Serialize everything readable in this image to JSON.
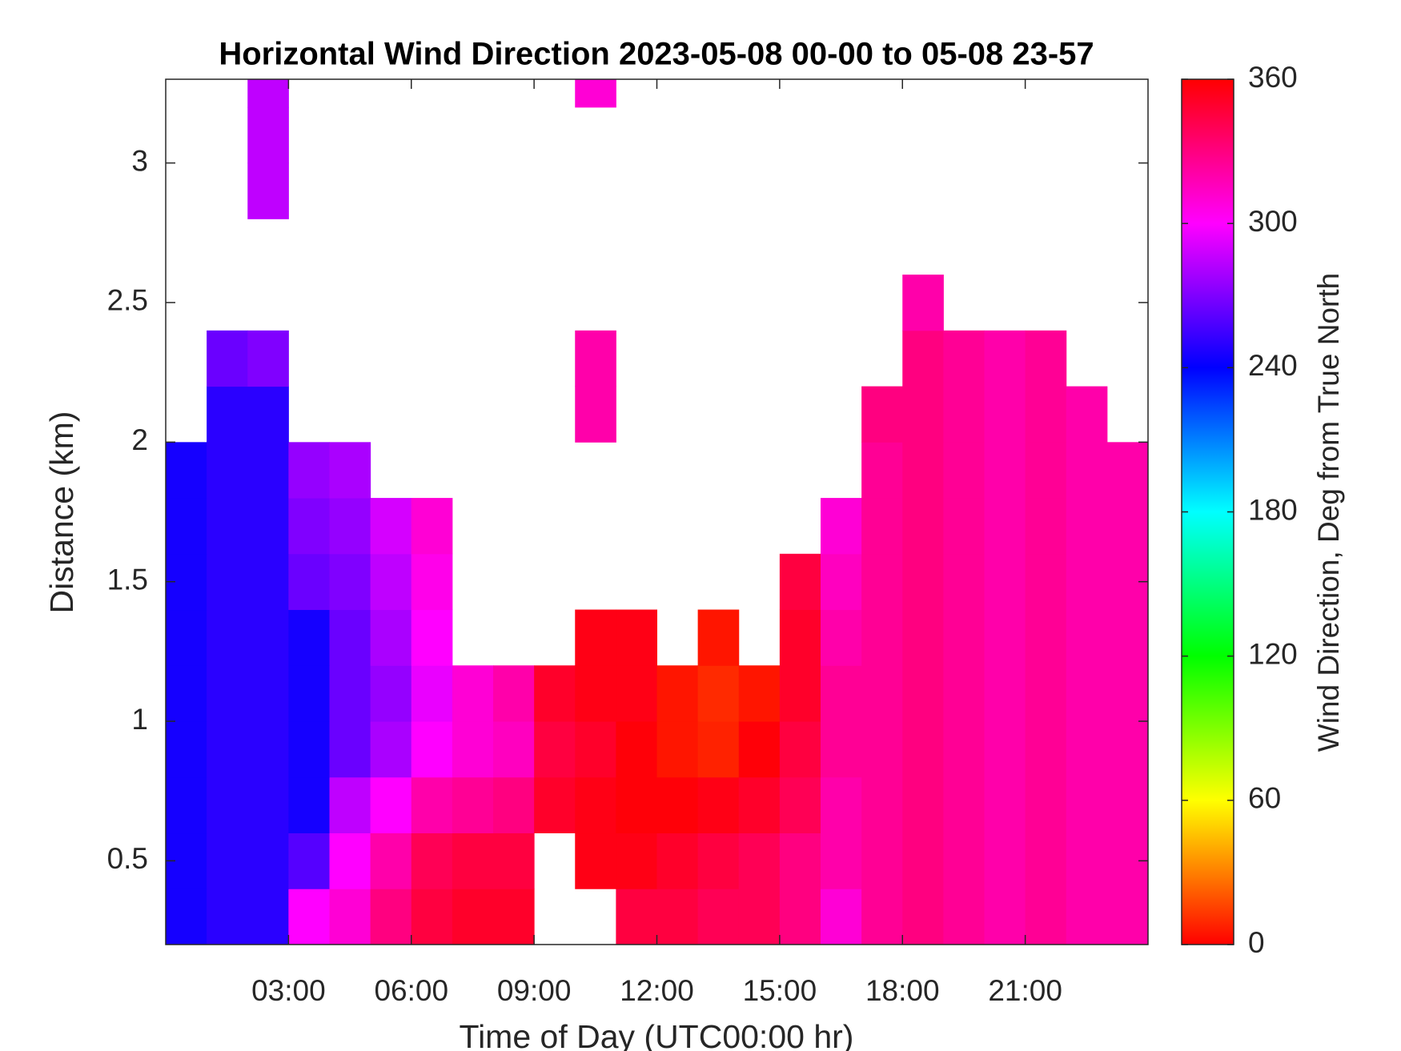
{
  "chart_data": {
    "type": "heatmap",
    "title": "Horizontal Wind Direction 2023-05-08 00-00 to 05-08 23-57",
    "x_label": "Time of Day (UTC00:00 hr)",
    "y_label": "Distance (km)",
    "xlim": [
      0,
      24
    ],
    "ylim": [
      0.2,
      3.3
    ],
    "xticks": [
      {
        "value": 3,
        "label": "03:00"
      },
      {
        "value": 6,
        "label": "06:00"
      },
      {
        "value": 9,
        "label": "09:00"
      },
      {
        "value": 12,
        "label": "12:00"
      },
      {
        "value": 15,
        "label": "15:00"
      },
      {
        "value": 18,
        "label": "18:00"
      },
      {
        "value": 21,
        "label": "21:00"
      }
    ],
    "yticks": [
      {
        "value": 0.5,
        "label": "0.5"
      },
      1,
      {
        "value": 1.5,
        "label": "1.5"
      },
      2,
      {
        "value": 2.5,
        "label": "2.5"
      },
      3
    ],
    "xbins": [
      0,
      1,
      2,
      3,
      4,
      5,
      6,
      7,
      8,
      9,
      10,
      11,
      12,
      13,
      14,
      15,
      16,
      17,
      18,
      19,
      20,
      21,
      22,
      23,
      24
    ],
    "ybins": [
      0.2,
      0.4,
      0.6,
      0.8,
      1.0,
      1.2,
      1.4,
      1.6,
      1.8,
      2.0,
      2.2,
      2.4,
      2.6,
      2.8,
      3.0,
      3.2,
      3.3
    ],
    "z": [
      [
        245,
        250,
        250,
        300,
        310,
        330,
        345,
        350,
        350,
        null,
        null,
        345,
        345,
        340,
        340,
        330,
        310,
        325,
        330,
        325,
        320,
        325,
        320,
        320
      ],
      [
        245,
        250,
        250,
        260,
        300,
        320,
        340,
        345,
        345,
        null,
        355,
        355,
        350,
        345,
        340,
        330,
        320,
        325,
        330,
        325,
        320,
        325,
        320,
        320
      ],
      [
        245,
        250,
        250,
        245,
        285,
        300,
        320,
        325,
        330,
        350,
        355,
        358,
        358,
        355,
        350,
        340,
        320,
        325,
        330,
        325,
        320,
        325,
        320,
        320
      ],
      [
        245,
        250,
        250,
        245,
        265,
        280,
        300,
        310,
        315,
        345,
        350,
        358,
        5,
        8,
        358,
        345,
        325,
        325,
        330,
        325,
        320,
        325,
        320,
        320
      ],
      [
        245,
        250,
        250,
        245,
        265,
        275,
        295,
        310,
        320,
        350,
        355,
        355,
        5,
        10,
        5,
        350,
        325,
        325,
        330,
        325,
        320,
        325,
        320,
        320
      ],
      [
        245,
        250,
        250,
        245,
        265,
        280,
        300,
        null,
        null,
        null,
        355,
        355,
        null,
        5,
        null,
        350,
        320,
        325,
        330,
        325,
        320,
        325,
        320,
        320
      ],
      [
        245,
        250,
        250,
        265,
        270,
        285,
        305,
        null,
        null,
        null,
        null,
        null,
        null,
        null,
        null,
        345,
        315,
        325,
        330,
        325,
        320,
        325,
        320,
        320
      ],
      [
        245,
        250,
        250,
        270,
        275,
        290,
        310,
        null,
        null,
        null,
        null,
        null,
        null,
        null,
        null,
        null,
        310,
        325,
        330,
        325,
        320,
        325,
        320,
        320
      ],
      [
        245,
        250,
        250,
        275,
        280,
        null,
        null,
        null,
        null,
        null,
        null,
        null,
        null,
        null,
        null,
        null,
        null,
        325,
        330,
        325,
        320,
        325,
        320,
        320
      ],
      [
        null,
        250,
        250,
        null,
        null,
        null,
        null,
        null,
        null,
        null,
        320,
        null,
        null,
        null,
        null,
        null,
        null,
        330,
        330,
        325,
        320,
        325,
        320,
        null
      ],
      [
        null,
        265,
        270,
        null,
        null,
        null,
        null,
        null,
        null,
        null,
        320,
        null,
        null,
        null,
        null,
        null,
        null,
        null,
        330,
        325,
        320,
        325,
        null,
        null
      ],
      [
        null,
        null,
        null,
        null,
        null,
        null,
        null,
        null,
        null,
        null,
        null,
        null,
        null,
        null,
        null,
        null,
        null,
        null,
        320,
        null,
        null,
        null,
        null,
        null
      ],
      [
        null,
        null,
        null,
        null,
        null,
        null,
        null,
        null,
        null,
        null,
        null,
        null,
        null,
        null,
        null,
        null,
        null,
        null,
        null,
        null,
        null,
        null,
        null,
        null
      ],
      [
        null,
        null,
        285,
        null,
        null,
        null,
        null,
        null,
        null,
        null,
        null,
        null,
        null,
        null,
        null,
        null,
        null,
        null,
        null,
        null,
        null,
        null,
        null,
        null
      ],
      [
        null,
        null,
        285,
        null,
        null,
        null,
        null,
        null,
        null,
        null,
        null,
        null,
        null,
        null,
        null,
        null,
        null,
        null,
        null,
        null,
        null,
        null,
        null,
        null
      ],
      [
        null,
        null,
        285,
        null,
        null,
        null,
        null,
        null,
        null,
        null,
        310,
        null,
        null,
        null,
        null,
        null,
        null,
        null,
        null,
        null,
        null,
        null,
        null,
        null
      ]
    ],
    "colormap": "hsv",
    "colorbar": {
      "label": "Wind Direction, Deg from True North",
      "lim": [
        0,
        360
      ],
      "ticks": [
        0,
        60,
        120,
        180,
        240,
        300,
        360
      ]
    }
  }
}
